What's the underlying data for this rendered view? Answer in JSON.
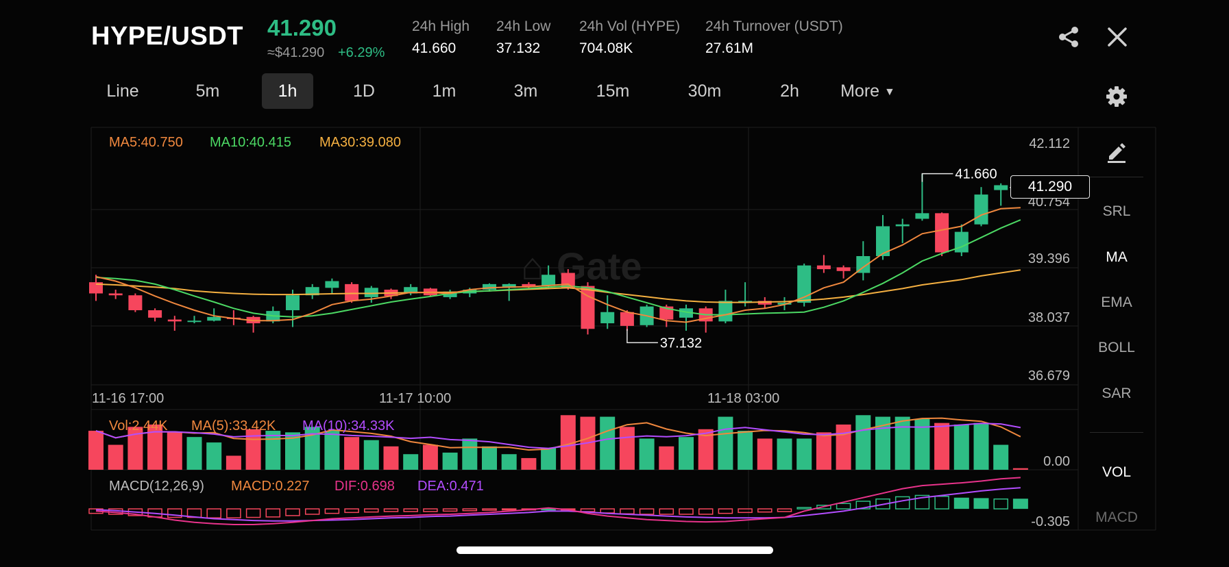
{
  "header": {
    "pair": "HYPE/USDT",
    "last_price": "41.290",
    "approx_price": "≈$41.290",
    "change_pct": "+6.29%"
  },
  "stats": [
    {
      "label": "24h High",
      "value": "41.660"
    },
    {
      "label": "24h Low",
      "value": "37.132"
    },
    {
      "label": "24h Vol (HYPE)",
      "value": "704.08K"
    },
    {
      "label": "24h Turnover (USDT)",
      "value": "27.61M"
    }
  ],
  "timeframes": [
    "Line",
    "5m",
    "1h",
    "1D",
    "1m",
    "3m",
    "15m",
    "30m",
    "2h",
    "More"
  ],
  "active_timeframe": "1h",
  "sidebar": {
    "indicators": [
      "SRL",
      "MA",
      "EMA",
      "BOLL",
      "SAR"
    ],
    "active_indicator": "MA",
    "sub_indicators": [
      "VOL",
      "MACD"
    ],
    "active_sub": "VOL"
  },
  "legend": {
    "ma5": "MA5:40.750",
    "ma10": "MA10:40.415",
    "ma30": "MA30:39.080",
    "vol": "Vol:2.44K",
    "vol_ma5": "MA(5):33.42K",
    "vol_ma10": "MA(10):34.33K",
    "macd_title": "MACD(12,26,9)",
    "macd": "MACD:0.227",
    "dif": "DIF:0.698",
    "dea": "DEA:0.471"
  },
  "price_axis": [
    "42.112",
    "40.754",
    "39.396",
    "38.037",
    "36.679"
  ],
  "vol_axis": "0.00",
  "macd_axis": "-0.305",
  "time_axis": [
    "11-16 17:00",
    "11-17 10:00",
    "11-18 03:00"
  ],
  "current_price_tag": "41.290",
  "annotations": {
    "high": "41.660",
    "low": "37.132"
  },
  "colors": {
    "up": "#2ebd85",
    "down": "#f6465d",
    "ma5": "#f0883e",
    "ma10": "#4cd964",
    "ma30": "#f5b041",
    "ma_purple": "#b34dff",
    "dif": "#e8338b"
  },
  "watermark": "Gate",
  "chart_data": {
    "type": "candlestick",
    "ylim": [
      36.0,
      42.9
    ],
    "candles": [
      [
        38.75,
        38.45,
        38.95,
        38.25
      ],
      [
        38.45,
        38.4,
        38.55,
        38.3
      ],
      [
        38.4,
        38.0,
        38.45,
        37.95
      ],
      [
        38.0,
        37.8,
        38.05,
        37.7
      ],
      [
        37.75,
        37.7,
        37.85,
        37.45
      ],
      [
        37.72,
        37.72,
        37.85,
        37.65
      ],
      [
        37.72,
        37.82,
        38.05,
        37.7
      ],
      [
        37.8,
        37.78,
        38.0,
        37.6
      ],
      [
        37.82,
        37.65,
        37.85,
        37.4
      ],
      [
        37.7,
        37.98,
        38.1,
        37.65
      ],
      [
        38.0,
        38.4,
        38.55,
        37.55
      ],
      [
        38.4,
        38.62,
        38.7,
        38.3
      ],
      [
        38.6,
        38.78,
        38.85,
        38.45
      ],
      [
        38.7,
        38.25,
        38.75,
        38.2
      ],
      [
        38.35,
        38.6,
        38.65,
        38.2
      ],
      [
        38.55,
        38.38,
        38.58,
        38.3
      ],
      [
        38.45,
        38.62,
        38.7,
        38.4
      ],
      [
        38.58,
        38.4,
        38.6,
        38.38
      ],
      [
        38.35,
        38.5,
        38.55,
        38.3
      ],
      [
        38.45,
        38.55,
        38.6,
        38.35
      ],
      [
        38.55,
        38.7,
        38.72,
        38.5
      ],
      [
        38.6,
        38.7,
        38.72,
        38.25
      ],
      [
        38.7,
        38.63,
        38.75,
        38.55
      ],
      [
        38.65,
        38.95,
        39.2,
        38.6
      ],
      [
        39.0,
        38.6,
        39.1,
        38.55
      ],
      [
        38.65,
        37.5,
        38.75,
        37.35
      ],
      [
        37.65,
        37.95,
        38.4,
        37.5
      ],
      [
        37.95,
        37.58,
        38.0,
        37.45
      ],
      [
        37.6,
        38.1,
        38.15,
        37.55
      ],
      [
        38.1,
        37.75,
        38.15,
        37.55
      ],
      [
        37.8,
        38.05,
        38.15,
        37.45
      ],
      [
        38.05,
        37.7,
        38.1,
        37.4
      ],
      [
        37.7,
        38.25,
        38.55,
        37.65
      ],
      [
        38.25,
        38.25,
        38.75,
        38.1
      ],
      [
        38.25,
        38.15,
        38.35,
        38.05
      ],
      [
        38.15,
        38.2,
        38.35,
        38.0
      ],
      [
        38.2,
        39.2,
        39.25,
        38.1
      ],
      [
        39.2,
        39.1,
        39.48,
        39.0
      ],
      [
        39.15,
        39.05,
        39.2,
        38.85
      ],
      [
        39.0,
        39.45,
        39.85,
        38.8
      ],
      [
        39.45,
        40.25,
        40.55,
        39.35
      ],
      [
        40.25,
        40.3,
        40.45,
        39.8
      ],
      [
        40.45,
        40.6,
        41.65,
        40.4
      ],
      [
        40.6,
        39.55,
        40.62,
        39.45
      ],
      [
        39.55,
        40.1,
        40.3,
        39.45
      ],
      [
        40.3,
        41.1,
        41.3,
        40.25
      ],
      [
        41.22,
        41.35,
        41.4,
        40.8
      ],
      [
        41.3,
        41.27,
        41.35,
        41.2
      ]
    ],
    "ma5": [
      38.9,
      38.78,
      38.6,
      38.38,
      38.18,
      38.0,
      37.85,
      37.78,
      37.72,
      37.72,
      37.75,
      37.92,
      38.15,
      38.25,
      38.3,
      38.38,
      38.48,
      38.47,
      38.45,
      38.55,
      38.6,
      38.62,
      38.63,
      38.66,
      38.7,
      38.38,
      38.15,
      37.95,
      37.85,
      37.72,
      37.68,
      37.78,
      37.88,
      38.0,
      38.05,
      38.15,
      38.35,
      38.6,
      38.75,
      39.15,
      39.52,
      39.75,
      40.05,
      40.15,
      40.25,
      40.55,
      40.72,
      40.75
    ],
    "ma10": [
      38.88,
      38.85,
      38.8,
      38.7,
      38.55,
      38.38,
      38.22,
      38.05,
      37.92,
      37.85,
      37.82,
      37.85,
      37.92,
      38.02,
      38.12,
      38.22,
      38.3,
      38.37,
      38.45,
      38.5,
      38.52,
      38.55,
      38.58,
      38.62,
      38.65,
      38.6,
      38.5,
      38.35,
      38.2,
      38.05,
      37.95,
      37.88,
      37.88,
      37.9,
      37.92,
      37.93,
      37.95,
      38.08,
      38.25,
      38.48,
      38.72,
      39.0,
      39.32,
      39.52,
      39.7,
      39.95,
      40.2,
      40.42
    ],
    "ma30": [
      38.7,
      38.68,
      38.65,
      38.62,
      38.58,
      38.52,
      38.48,
      38.45,
      38.43,
      38.42,
      38.42,
      38.43,
      38.44,
      38.45,
      38.45,
      38.46,
      38.47,
      38.48,
      38.48,
      38.5,
      38.52,
      38.54,
      38.56,
      38.58,
      38.6,
      38.55,
      38.48,
      38.42,
      38.36,
      38.3,
      38.25,
      38.22,
      38.21,
      38.21,
      38.22,
      38.23,
      38.26,
      38.3,
      38.35,
      38.42,
      38.5,
      38.58,
      38.68,
      38.75,
      38.82,
      38.92,
      39.0,
      39.08
    ],
    "volumes": [
      50,
      32,
      55,
      58,
      48,
      42,
      35,
      18,
      52,
      50,
      48,
      55,
      50,
      42,
      38,
      30,
      20,
      32,
      22,
      40,
      30,
      20,
      15,
      28,
      70,
      68,
      68,
      55,
      40,
      30,
      42,
      52,
      68,
      50,
      40,
      40,
      40,
      48,
      58,
      70,
      68,
      68,
      65,
      60,
      58,
      60,
      32,
      2
    ],
    "macd_hist": [
      -0.1,
      -0.12,
      -0.15,
      -0.18,
      -0.19,
      -0.19,
      -0.2,
      -0.2,
      -0.19,
      -0.18,
      -0.15,
      -0.12,
      -0.1,
      -0.08,
      -0.07,
      -0.06,
      -0.06,
      -0.06,
      -0.05,
      -0.04,
      -0.03,
      -0.02,
      -0.01,
      0.0,
      -0.02,
      -0.06,
      -0.09,
      -0.11,
      -0.12,
      -0.12,
      -0.12,
      -0.12,
      -0.1,
      -0.08,
      -0.07,
      -0.06,
      0.03,
      0.08,
      0.12,
      0.17,
      0.22,
      0.27,
      0.3,
      0.28,
      0.25,
      0.24,
      0.22,
      0.227
    ],
    "dif": [
      -0.05,
      -0.08,
      -0.12,
      -0.18,
      -0.25,
      -0.3,
      -0.33,
      -0.35,
      -0.35,
      -0.33,
      -0.3,
      -0.26,
      -0.22,
      -0.2,
      -0.18,
      -0.16,
      -0.15,
      -0.13,
      -0.12,
      -0.1,
      -0.08,
      -0.05,
      -0.02,
      0.02,
      -0.02,
      -0.1,
      -0.16,
      -0.2,
      -0.24,
      -0.26,
      -0.28,
      -0.29,
      -0.28,
      -0.25,
      -0.22,
      -0.19,
      -0.05,
      0.05,
      0.15,
      0.25,
      0.35,
      0.45,
      0.52,
      0.55,
      0.58,
      0.62,
      0.67,
      0.698
    ],
    "dea": [
      -0.02,
      -0.04,
      -0.07,
      -0.1,
      -0.14,
      -0.18,
      -0.22,
      -0.24,
      -0.26,
      -0.27,
      -0.27,
      -0.26,
      -0.25,
      -0.24,
      -0.22,
      -0.2,
      -0.19,
      -0.17,
      -0.16,
      -0.14,
      -0.12,
      -0.1,
      -0.08,
      -0.05,
      -0.05,
      -0.07,
      -0.1,
      -0.12,
      -0.14,
      -0.16,
      -0.18,
      -0.19,
      -0.2,
      -0.2,
      -0.2,
      -0.19,
      -0.15,
      -0.1,
      -0.05,
      0.02,
      0.1,
      0.18,
      0.25,
      0.3,
      0.35,
      0.4,
      0.44,
      0.471
    ]
  }
}
